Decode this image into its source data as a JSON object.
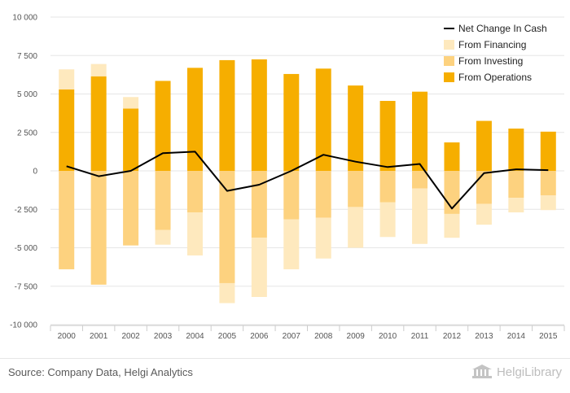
{
  "chart_data": {
    "type": "bar",
    "stacked": true,
    "categories": [
      "2000",
      "2001",
      "2002",
      "2003",
      "2004",
      "2005",
      "2006",
      "2007",
      "2008",
      "2009",
      "2010",
      "2011",
      "2012",
      "2013",
      "2014",
      "2015"
    ],
    "series": [
      {
        "name": "From Operations",
        "kind": "bar",
        "color": "#f6ae00",
        "values": [
          5300,
          6150,
          4050,
          5850,
          6700,
          7200,
          7250,
          6300,
          6650,
          5550,
          4550,
          5150,
          1850,
          3250,
          2750,
          2550
        ]
      },
      {
        "name": "From Investing",
        "kind": "bar",
        "color": "#fdd27f",
        "values": [
          -6400,
          -7400,
          -4850,
          -3850,
          -2700,
          -7300,
          -4350,
          -3150,
          -3050,
          -2350,
          -2050,
          -1150,
          -2800,
          -2150,
          -1750,
          -1600
        ]
      },
      {
        "name": "From Financing",
        "kind": "bar",
        "color": "#fee9be",
        "values": [
          1300,
          800,
          750,
          -950,
          -2800,
          -1300,
          -3850,
          -3250,
          -2650,
          -2650,
          -2250,
          -3600,
          -1550,
          -1350,
          -950,
          -950
        ]
      },
      {
        "name": "Net Change In Cash",
        "kind": "line",
        "color": "#000000",
        "values": [
          300,
          -350,
          0,
          1150,
          1250,
          -1300,
          -900,
          0,
          1050,
          600,
          250,
          450,
          -2450,
          -150,
          100,
          50
        ]
      }
    ],
    "y_ticks": [
      "10 000",
      "7 500",
      "5 000",
      "2 500",
      "0",
      "-2 500",
      "-5 000",
      "-7 500",
      "-10 000"
    ],
    "ylim": [
      -10000,
      10000
    ],
    "grid": true,
    "legend_position": "top-right",
    "legend_order": [
      "Net Change In Cash",
      "From Financing",
      "From Investing",
      "From Operations"
    ]
  },
  "footer": {
    "source": "Source: Company Data, Helgi Analytics",
    "brand": "HelgiLibrary"
  }
}
